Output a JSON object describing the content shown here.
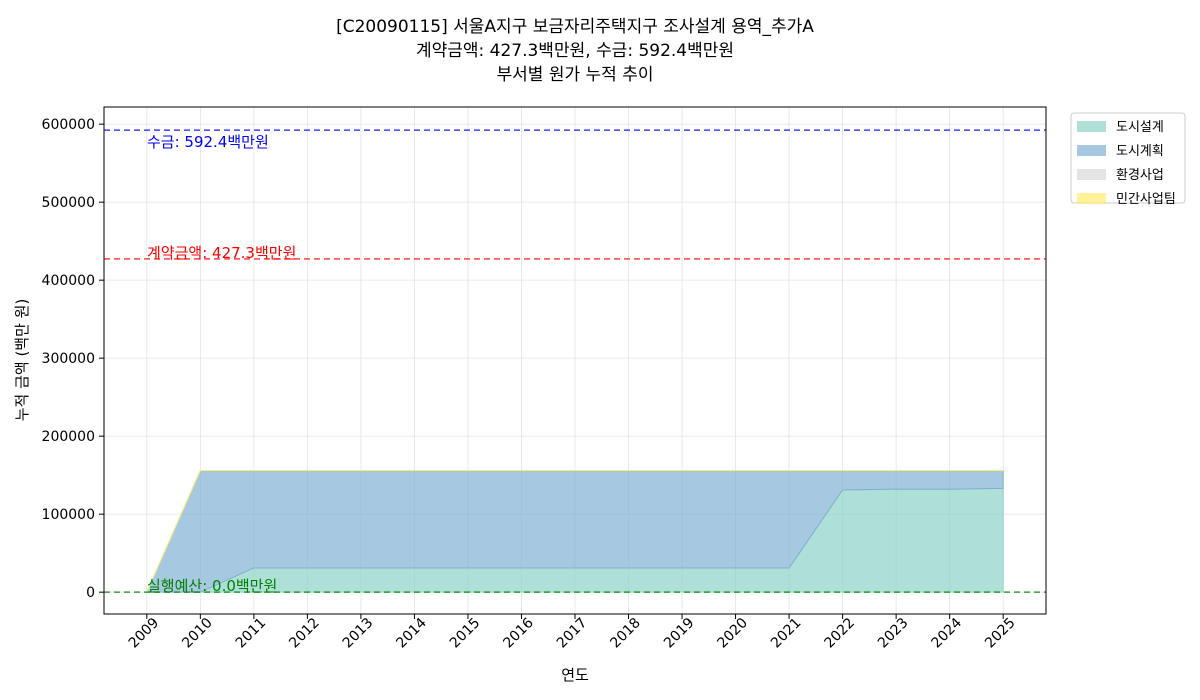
{
  "chart_data": {
    "type": "area",
    "stacked": true,
    "title_lines": [
      "[C20090115] 서울A지구 보금자리주택지구 조사설계 용역_추가A",
      "계약금액: 427.3백만원, 수금: 592.4백만원",
      "부서별 원가 누적 추이"
    ],
    "xlabel": "연도",
    "ylabel": "누적 금액 (백만 원)",
    "x": [
      "2009",
      "2010",
      "2011",
      "2012",
      "2013",
      "2014",
      "2015",
      "2016",
      "2017",
      "2018",
      "2019",
      "2020",
      "2021",
      "2022",
      "2023",
      "2024",
      "2025"
    ],
    "xlim": [
      2008.2,
      2025.8
    ],
    "ylim": [
      -28000,
      622000
    ],
    "yticks": [
      "0",
      "100000",
      "200000",
      "300000",
      "400000",
      "500000",
      "600000"
    ],
    "grid": true,
    "legend_position": "outside-top-right",
    "series": [
      {
        "name": "도시설계",
        "color": "#8dd3c7",
        "values": [
          0,
          0,
          31000,
          31000,
          31000,
          31000,
          31000,
          31000,
          31000,
          31000,
          31000,
          31000,
          31000,
          131000,
          132000,
          132000,
          133000
        ]
      },
      {
        "name": "도시계획",
        "color": "#80b1d3",
        "values": [
          0,
          156000,
          125000,
          125000,
          125000,
          125000,
          125000,
          125000,
          125000,
          125000,
          125000,
          125000,
          125000,
          25000,
          24000,
          24000,
          23000
        ]
      },
      {
        "name": "환경사업",
        "color": "#d9d9d9",
        "values": [
          0,
          0,
          0,
          0,
          0,
          0,
          0,
          0,
          0,
          0,
          0,
          0,
          0,
          0,
          0,
          0,
          0
        ]
      },
      {
        "name": "민간사업팀",
        "color": "#ffed6f",
        "values": [
          0,
          0,
          0,
          0,
          0,
          0,
          0,
          0,
          0,
          0,
          0,
          0,
          0,
          0,
          0,
          0,
          0
        ]
      }
    ],
    "reference_lines": [
      {
        "value": 592400,
        "label": "수금: 592.4백만원",
        "color": "#0000ff"
      },
      {
        "value": 427300,
        "label": "계약금액: 427.3백만원",
        "color": "#ff0000"
      },
      {
        "value": 0,
        "label": "실행예산: 0.0백만원",
        "color": "#008000"
      }
    ]
  }
}
